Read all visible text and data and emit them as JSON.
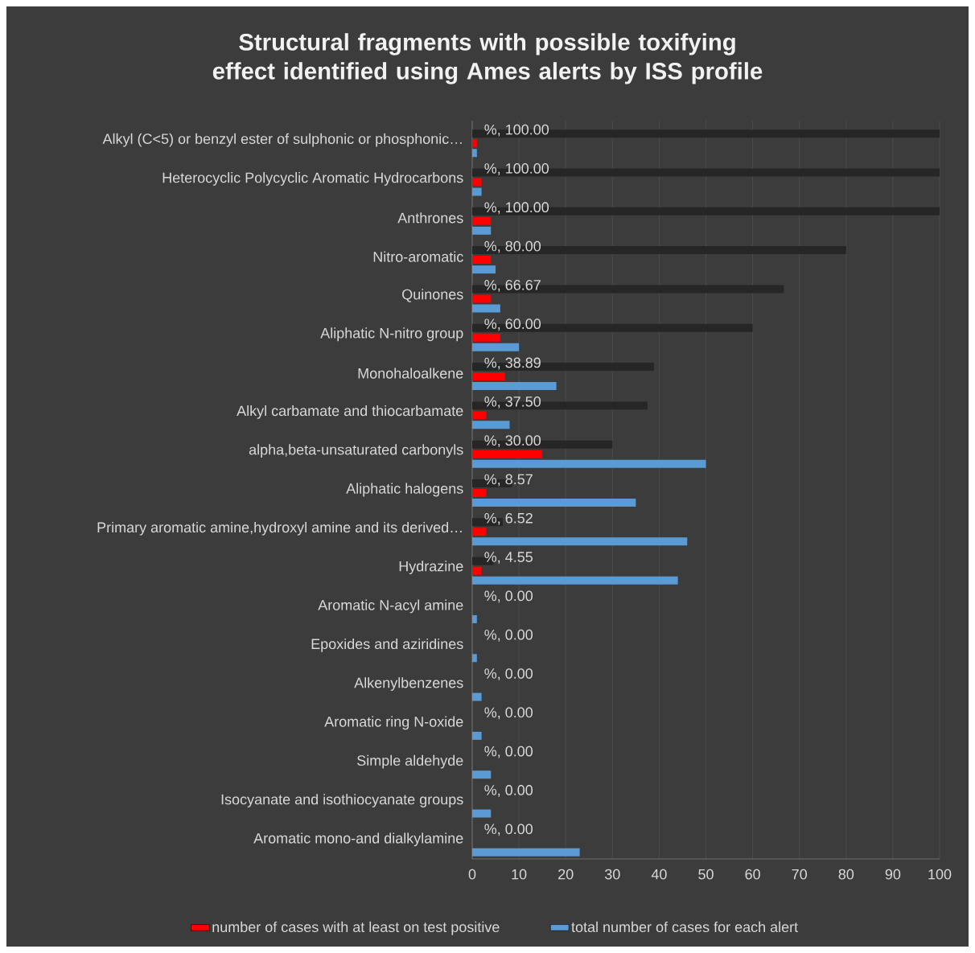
{
  "chart_data": {
    "type": "bar",
    "orientation": "horizontal",
    "title": "Structural fragments with possible toxifying effect identified using Ames alerts by ISS profile",
    "categories": [
      "Alkyl (C<5) or benzyl ester of sulphonic or phosphonic…",
      "Heterocyclic Polycyclic Aromatic Hydrocarbons",
      "Anthrones",
      "Nitro-aromatic",
      "Quinones",
      "Aliphatic N-nitro group",
      "Monohaloalkene",
      "Alkyl carbamate and thiocarbamate",
      "alpha,beta-unsaturated carbonyls",
      "Aliphatic halogens",
      "Primary aromatic amine,hydroxyl amine and its derived…",
      "Hydrazine",
      "Aromatic N-acyl amine",
      "Epoxides and aziridines",
      "Alkenylbenzenes",
      "Aromatic ring N-oxide",
      "Simple aldehyde",
      "Isocyanate and isothiocyanate groups",
      "Aromatic mono-and dialkylamine"
    ],
    "series": [
      {
        "color": "#262626",
        "values": [
          100,
          100,
          100,
          80,
          66.67,
          60,
          38.89,
          37.5,
          30,
          8.57,
          6.52,
          4.55,
          0,
          0,
          0,
          0,
          0,
          0,
          0
        ],
        "value_labels": [
          "%, 100.00",
          "%, 100.00",
          "%, 100.00",
          "%, 80.00",
          "%, 66.67",
          "%, 60.00",
          "%, 38.89",
          "%, 37.50",
          "%, 30.00",
          "%, 8.57",
          "%, 6.52",
          "%, 4.55",
          "%, 0.00",
          "%, 0.00",
          "%, 0.00",
          "%, 0.00",
          "%, 0.00",
          "%, 0.00",
          "%, 0.00"
        ]
      },
      {
        "name": "number of cases with at least on test positive",
        "color": "#ff0000",
        "values": [
          1,
          2,
          4,
          4,
          4,
          6,
          7,
          3,
          15,
          3,
          3,
          2,
          0,
          0,
          0,
          0,
          0,
          0,
          0
        ]
      },
      {
        "name": "total number of cases for each alert",
        "color": "#5b9bd5",
        "values": [
          1,
          2,
          4,
          5,
          6,
          10,
          18,
          8,
          50,
          35,
          46,
          44,
          1,
          1,
          2,
          2,
          4,
          4,
          23
        ]
      }
    ],
    "xlim": [
      0,
      100
    ],
    "xticks": [
      0,
      10,
      20,
      30,
      40,
      50,
      60,
      70,
      80,
      90,
      100
    ],
    "grid": "x",
    "legend": "bottom"
  }
}
